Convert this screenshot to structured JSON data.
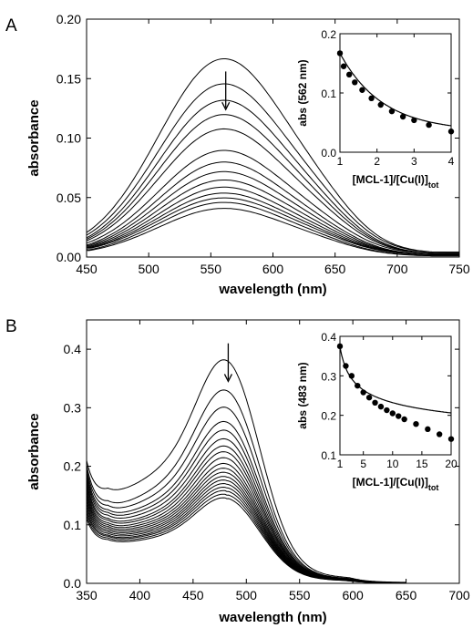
{
  "chart_data": [
    {
      "panel": "A",
      "type": "line",
      "xlabel": "wavelength (nm)",
      "ylabel": "absorbance",
      "xlim": [
        450,
        750
      ],
      "ylim": [
        0,
        0.2
      ],
      "xticks": [
        450,
        500,
        550,
        600,
        650,
        700,
        750
      ],
      "yticks": [
        0.0,
        0.05,
        0.1,
        0.15,
        0.2
      ],
      "xtick_labels": [
        "450",
        "500",
        "550",
        "600",
        "650",
        "700",
        "750"
      ],
      "ytick_labels": [
        "0.00",
        "0.05",
        "0.10",
        "0.15",
        "0.20"
      ],
      "peak_wavelength": 562,
      "arrow": {
        "x": 562,
        "y_from": 0.156,
        "y_to": 0.124
      },
      "spectra": {
        "description": "titration series, absorbance decreasing",
        "peak_abs": [
          0.167,
          0.146,
          0.132,
          0.12,
          0.108,
          0.09,
          0.08,
          0.072,
          0.065,
          0.059,
          0.054,
          0.05,
          0.046,
          0.041
        ],
        "abs_450": [
          0.035,
          0.033,
          0.031,
          0.03,
          0.028,
          0.026,
          0.025,
          0.023,
          0.022,
          0.02,
          0.019,
          0.018,
          0.016,
          0.014
        ],
        "abs_750": [
          0.004,
          0.004,
          0.003,
          0.003,
          0.003,
          0.003,
          0.002,
          0.002,
          0.002,
          0.002,
          0.002,
          0.002,
          0.001,
          0.001
        ]
      },
      "inset": {
        "type": "scatter",
        "xlabel": "[MCL-1]/[Cu(I)]",
        "xlabel_sub": "tot",
        "ylabel": "abs (562 nm)",
        "xlim": [
          1,
          4
        ],
        "ylim": [
          0,
          0.2
        ],
        "xticks": [
          1,
          2,
          3,
          4
        ],
        "yticks": [
          0,
          0.1,
          0.2
        ],
        "xtick_labels": [
          "1",
          "2",
          "3",
          "4"
        ],
        "ytick_labels": [
          "0.0",
          "0.1",
          "0.2"
        ],
        "x": [
          1.0,
          1.1,
          1.25,
          1.4,
          1.6,
          1.85,
          2.1,
          2.4,
          2.7,
          3.0,
          3.4,
          4.0
        ],
        "y": [
          0.167,
          0.145,
          0.131,
          0.118,
          0.105,
          0.091,
          0.08,
          0.069,
          0.06,
          0.054,
          0.046,
          0.035
        ]
      }
    },
    {
      "panel": "B",
      "type": "line",
      "xlabel": "wavelength (nm)",
      "ylabel": "absorbance",
      "xlim": [
        350,
        700
      ],
      "ylim": [
        0,
        0.45
      ],
      "xticks": [
        350,
        400,
        450,
        500,
        550,
        600,
        650,
        700
      ],
      "yticks": [
        0.0,
        0.1,
        0.2,
        0.3,
        0.4
      ],
      "xtick_labels": [
        "350",
        "400",
        "450",
        "500",
        "550",
        "600",
        "650",
        "700"
      ],
      "ytick_labels": [
        "0.0",
        "0.1",
        "0.2",
        "0.3",
        "0.4"
      ],
      "peak_wavelength": 483,
      "arrow": {
        "x": 483,
        "y_from": 0.41,
        "y_to": 0.345
      },
      "spectra": {
        "description": "titration series, absorbance decreasing",
        "peak_abs": [
          0.375,
          0.325,
          0.295,
          0.27,
          0.255,
          0.24,
          0.228,
          0.218,
          0.208,
          0.198,
          0.19,
          0.183,
          0.176,
          0.17,
          0.164,
          0.158,
          0.152,
          0.146,
          0.14
        ],
        "abs_350": [
          0.195,
          0.19,
          0.185,
          0.18,
          0.175,
          0.17,
          0.165,
          0.16,
          0.155,
          0.15,
          0.145,
          0.14,
          0.135,
          0.13,
          0.125,
          0.12,
          0.115,
          0.11,
          0.105
        ],
        "abs_370": [
          0.118,
          0.1,
          0.095,
          0.09,
          0.087,
          0.084,
          0.08,
          0.078,
          0.075,
          0.073,
          0.071,
          0.069,
          0.067,
          0.065,
          0.063,
          0.061,
          0.06,
          0.058,
          0.056
        ]
      },
      "inset": {
        "type": "scatter",
        "xlabel": "[MCL-1]/[Cu(I)]",
        "xlabel_sub": "tot",
        "ylabel": "abs (483 nm)",
        "xlim": [
          1,
          20
        ],
        "ylim": [
          0.1,
          0.4
        ],
        "xticks": [
          1,
          5,
          10,
          15,
          20
        ],
        "yticks": [
          0.1,
          0.2,
          0.3,
          0.4
        ],
        "xtick_labels": [
          "1",
          "5",
          "10",
          "15",
          "20"
        ],
        "ytick_labels": [
          "0.1",
          "0.2",
          "0.3",
          "0.4"
        ],
        "x": [
          1.0,
          2.0,
          3.0,
          4.0,
          5.0,
          6.0,
          7.0,
          8.0,
          9.0,
          10.0,
          11.0,
          12.0,
          14.0,
          16.0,
          18.0,
          20.0
        ],
        "y": [
          0.375,
          0.325,
          0.3,
          0.275,
          0.258,
          0.245,
          0.232,
          0.222,
          0.213,
          0.205,
          0.198,
          0.19,
          0.178,
          0.165,
          0.152,
          0.14
        ]
      }
    }
  ]
}
